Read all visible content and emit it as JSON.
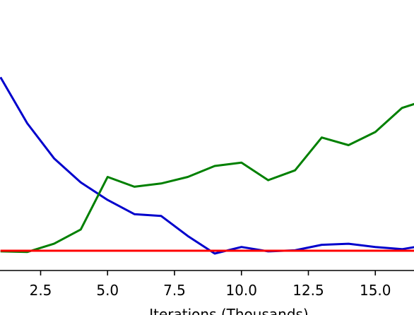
{
  "chart_data": {
    "type": "line",
    "xlabel": "Iterations (Thousands)",
    "ylabel": "",
    "title": "",
    "xticks": [
      2.5,
      5.0,
      7.5,
      10.0,
      12.5,
      15.0
    ],
    "xtick_labels": [
      "2.5",
      "5.0",
      "7.5",
      "10.0",
      "12.5",
      "15.0"
    ],
    "grid": false,
    "series": [
      {
        "color": "#0000cc",
        "x": [
          1,
          2,
          3,
          4,
          5,
          6,
          7,
          8,
          9,
          10,
          11,
          12,
          13,
          14,
          15,
          16,
          16.5
        ],
        "y": [
          82,
          61,
          45,
          34,
          26,
          19.5,
          18.7,
          9.5,
          1.5,
          4.5,
          2.5,
          3,
          5.5,
          6,
          4.5,
          3.5,
          4.5
        ]
      },
      {
        "color": "#008000",
        "x": [
          1,
          2,
          3,
          4,
          5,
          6,
          7,
          8,
          9,
          10,
          11,
          12,
          13,
          14,
          15,
          16,
          16.5
        ],
        "y": [
          2.5,
          2.2,
          6,
          12.5,
          36.5,
          32,
          33.5,
          36.5,
          41.5,
          43,
          35,
          39.5,
          54.5,
          51,
          57,
          68,
          70
        ]
      },
      {
        "color": "#ff0000",
        "x": [
          1,
          16.5
        ],
        "y": [
          2.8,
          2.8
        ]
      }
    ]
  }
}
